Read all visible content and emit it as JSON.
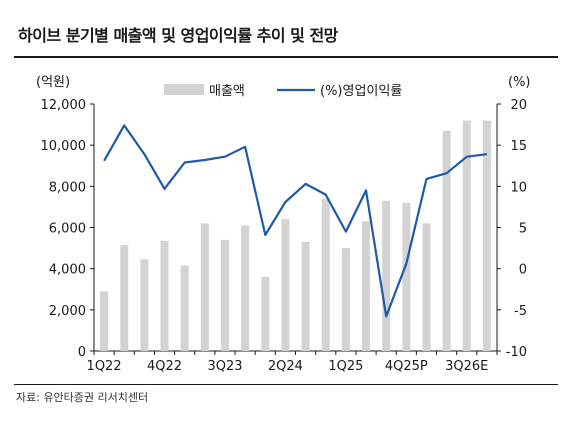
{
  "title": "하이브 분기별 매출액 및 영업이익률 추이 및 전망",
  "source": "자료: 유안타증권 리서치센터",
  "chart_data": {
    "type": "bar",
    "secondary_type": "line",
    "categories": [
      "1Q22",
      "2Q22",
      "3Q22",
      "4Q22",
      "1Q23",
      "2Q23",
      "3Q23",
      "4Q23",
      "1Q24",
      "2Q24",
      "3Q24",
      "4Q24",
      "1Q25",
      "2Q25",
      "3Q25",
      "4Q25P",
      "1Q26E",
      "2Q26E",
      "3Q26E",
      "4Q26E"
    ],
    "x_tick_labels": [
      "1Q22",
      "4Q22",
      "3Q23",
      "2Q24",
      "1Q25",
      "4Q25P",
      "3Q26E"
    ],
    "series": [
      {
        "name": "매출액",
        "axis": "left",
        "type": "bar",
        "color": "#d3d3d3",
        "values": [
          2900,
          5150,
          4450,
          5350,
          4150,
          6200,
          5400,
          6100,
          3600,
          6400,
          5300,
          7400,
          5000,
          6300,
          7300,
          7200,
          6200,
          10700,
          11200,
          11200
        ]
      },
      {
        "name": "(%)영업이익률",
        "axis": "right",
        "type": "line",
        "color": "#1f5aa6",
        "values": [
          13.1,
          17.4,
          13.9,
          9.7,
          12.9,
          13.2,
          13.6,
          14.8,
          4.1,
          8.1,
          10.3,
          9.0,
          4.5,
          9.5,
          -5.8,
          0.6,
          10.9,
          11.6,
          13.6,
          13.9
        ]
      }
    ],
    "y_left": {
      "label": "(억원)",
      "ylim": [
        0,
        12000
      ],
      "ticks": [
        0,
        2000,
        4000,
        6000,
        8000,
        10000,
        12000
      ],
      "tick_labels": [
        "0",
        "2,000",
        "4,000",
        "6,000",
        "8,000",
        "10,000",
        "12,000"
      ]
    },
    "y_right": {
      "label": "(%)",
      "ylim": [
        -10,
        20
      ],
      "ticks": [
        -10,
        -5,
        0,
        5,
        10,
        15,
        20
      ],
      "tick_labels": [
        "-10",
        "-5",
        "0",
        "5",
        "10",
        "15",
        "20"
      ]
    },
    "legend": {
      "placement": "top-center",
      "items": [
        "매출액",
        "(%)영업이익률"
      ]
    },
    "grid": false
  }
}
